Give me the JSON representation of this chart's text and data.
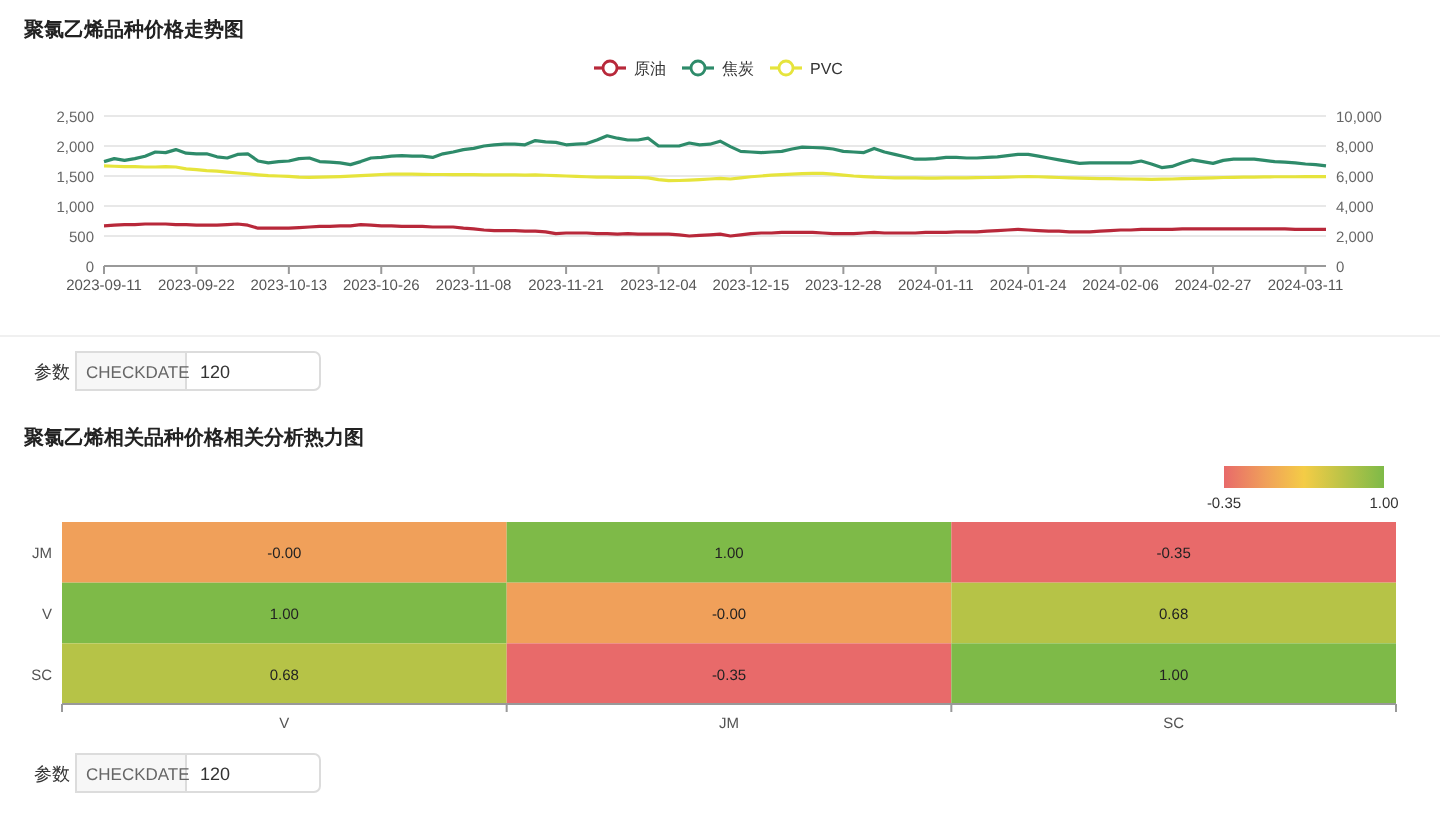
{
  "chart_data": [
    {
      "type": "line",
      "title": "聚氯乙烯品种价格走势图",
      "categories": [
        "2023-09-11",
        null,
        null,
        null,
        null,
        null,
        null,
        null,
        null,
        "2023-09-22",
        null,
        null,
        null,
        null,
        null,
        null,
        null,
        null,
        "2023-10-13",
        null,
        null,
        null,
        null,
        null,
        null,
        null,
        null,
        "2023-10-26",
        null,
        null,
        null,
        null,
        null,
        null,
        null,
        null,
        "2023-11-08",
        null,
        null,
        null,
        null,
        null,
        null,
        null,
        null,
        "2023-11-21",
        null,
        null,
        null,
        null,
        null,
        null,
        null,
        null,
        "2023-12-04",
        null,
        null,
        null,
        null,
        null,
        null,
        null,
        null,
        "2023-12-15",
        null,
        null,
        null,
        null,
        null,
        null,
        null,
        null,
        "2023-12-28",
        null,
        null,
        null,
        null,
        null,
        null,
        null,
        null,
        "2024-01-11",
        null,
        null,
        null,
        null,
        null,
        null,
        null,
        null,
        "2024-01-24",
        null,
        null,
        null,
        null,
        null,
        null,
        null,
        null,
        "2024-02-06",
        null,
        null,
        null,
        null,
        null,
        null,
        null,
        null,
        "2024-02-27",
        null,
        null,
        null,
        null,
        null,
        null,
        null,
        null,
        "2024-03-11",
        null,
        null
      ],
      "series": [
        {
          "name": "原油",
          "color": "#b8283a",
          "values": [
            670,
            680,
            690,
            690,
            700,
            700,
            700,
            690,
            690,
            680,
            680,
            680,
            690,
            700,
            680,
            630,
            630,
            630,
            630,
            640,
            650,
            660,
            660,
            670,
            670,
            690,
            680,
            670,
            670,
            660,
            660,
            660,
            650,
            650,
            650,
            630,
            620,
            600,
            590,
            590,
            590,
            580,
            580,
            570,
            540,
            550,
            550,
            550,
            540,
            540,
            530,
            540,
            530,
            530,
            530,
            530,
            520,
            500,
            510,
            520,
            530,
            500,
            520,
            540,
            550,
            550,
            560,
            560,
            560,
            560,
            550,
            540,
            540,
            540,
            550,
            560,
            550,
            550,
            550,
            550,
            560,
            560,
            560,
            570,
            570,
            570,
            580,
            590,
            600,
            610,
            600,
            590,
            580,
            580,
            570,
            570,
            570,
            580,
            590,
            600,
            600,
            610,
            610,
            610,
            610,
            620,
            620,
            620,
            620,
            620,
            620,
            620,
            620,
            620,
            620,
            620,
            610,
            610,
            610,
            610
          ]
        },
        {
          "name": "焦炭",
          "color": "#2e8b6a",
          "values": [
            1740,
            1790,
            1760,
            1790,
            1830,
            1900,
            1890,
            1940,
            1880,
            1870,
            1870,
            1820,
            1800,
            1860,
            1870,
            1750,
            1720,
            1740,
            1750,
            1790,
            1800,
            1740,
            1730,
            1720,
            1690,
            1740,
            1800,
            1810,
            1830,
            1840,
            1830,
            1830,
            1810,
            1870,
            1900,
            1940,
            1960,
            2000,
            2020,
            2030,
            2030,
            2020,
            2090,
            2070,
            2060,
            2020,
            2030,
            2040,
            2100,
            2170,
            2130,
            2100,
            2100,
            2130,
            2000,
            2000,
            2000,
            2050,
            2020,
            2030,
            2080,
            1990,
            1910,
            1900,
            1890,
            1900,
            1910,
            1950,
            1980,
            1975,
            1970,
            1950,
            1910,
            1900,
            1890,
            1960,
            1900,
            1860,
            1820,
            1780,
            1780,
            1790,
            1810,
            1810,
            1800,
            1800,
            1810,
            1820,
            1840,
            1860,
            1860,
            1830,
            1800,
            1770,
            1740,
            1710,
            1720,
            1720,
            1720,
            1720,
            1720,
            1750,
            1700,
            1640,
            1660,
            1720,
            1770,
            1740,
            1710,
            1760,
            1780,
            1780,
            1780,
            1760,
            1740,
            1730,
            1720,
            1700,
            1690,
            1670
          ]
        },
        {
          "name": "PVC",
          "color": "#e6e43c",
          "axis": "y2",
          "values": [
            6670,
            6650,
            6630,
            6620,
            6600,
            6600,
            6620,
            6600,
            6480,
            6420,
            6360,
            6320,
            6260,
            6200,
            6150,
            6080,
            6020,
            6000,
            5970,
            5930,
            5910,
            5920,
            5940,
            5960,
            5990,
            6020,
            6060,
            6100,
            6120,
            6130,
            6120,
            6110,
            6100,
            6100,
            6090,
            6090,
            6090,
            6080,
            6080,
            6080,
            6070,
            6060,
            6070,
            6050,
            6030,
            6000,
            5980,
            5950,
            5930,
            5920,
            5910,
            5910,
            5900,
            5880,
            5760,
            5690,
            5700,
            5730,
            5760,
            5800,
            5840,
            5800,
            5880,
            5950,
            6000,
            6060,
            6090,
            6130,
            6160,
            6180,
            6170,
            6120,
            6060,
            6000,
            5960,
            5920,
            5900,
            5880,
            5870,
            5870,
            5860,
            5860,
            5870,
            5870,
            5880,
            5890,
            5900,
            5910,
            5930,
            5950,
            5960,
            5950,
            5920,
            5900,
            5880,
            5860,
            5840,
            5830,
            5820,
            5810,
            5800,
            5790,
            5780,
            5790,
            5800,
            5820,
            5840,
            5860,
            5880,
            5900,
            5910,
            5920,
            5930,
            5940,
            5950,
            5950,
            5950,
            5960,
            5960,
            5960
          ]
        }
      ],
      "ylim": [
        0,
        2500
      ],
      "yticks": [
        0,
        500,
        {
          "value": 1000,
          "label": "1,000"
        },
        {
          "value": 1500,
          "label": "1,500"
        },
        {
          "value": 2000,
          "label": "2,000"
        },
        {
          "value": 2500,
          "label": "2,500"
        }
      ],
      "y2lim": [
        0,
        10000
      ],
      "y2ticks": [
        0,
        {
          "value": 2000,
          "label": "2,000"
        },
        {
          "value": 4000,
          "label": "4,000"
        },
        {
          "value": 6000,
          "label": "6,000"
        },
        {
          "value": 8000,
          "label": "8,000"
        },
        {
          "value": 10000,
          "label": "10,000"
        }
      ],
      "grid": "y",
      "legend": "top",
      "annotations": [
        "参数",
        "CHECKDATE",
        "120"
      ]
    },
    {
      "type": "heatmap",
      "title": "聚氯乙烯相关品种价格相关分析热力图",
      "categories": [
        "V",
        "JM",
        "SC"
      ],
      "y_categories": [
        "JM",
        "V",
        "SC"
      ],
      "cells": [
        [
          0.0,
          1.0,
          -0.35
        ],
        [
          1.0,
          0.0,
          0.68
        ],
        [
          0.68,
          -0.35,
          1.0
        ]
      ],
      "cell_labels": [
        [
          "-0.00",
          "1.00",
          "-0.35"
        ],
        [
          "1.00",
          "-0.00",
          "0.68"
        ],
        [
          "0.68",
          "-0.35",
          "1.00"
        ]
      ],
      "clim": [
        -0.35,
        1.0
      ],
      "cticks": [
        {
          "value": -0.35,
          "label": "-0.35"
        },
        {
          "value": 1.0,
          "label": "1.00"
        }
      ],
      "annotations": [
        "参数",
        "CHECKDATE",
        "120"
      ]
    }
  ]
}
